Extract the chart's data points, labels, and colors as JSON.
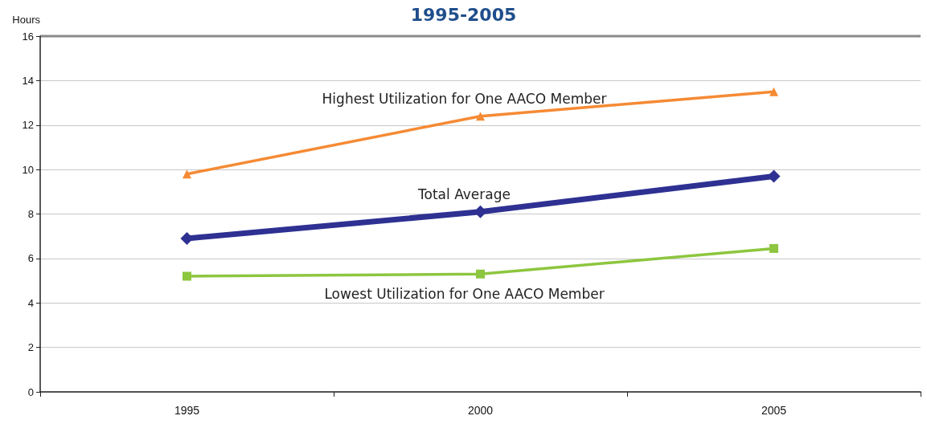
{
  "chart_data": {
    "type": "line",
    "title": "1995-2005",
    "ylabel": "Hours",
    "categories": [
      "1995",
      "2000",
      "2005"
    ],
    "series": [
      {
        "name": "Highest Utilization for One AACO Member",
        "color": "#f58a34",
        "values": [
          9.8,
          12.4,
          13.5
        ],
        "marker": "triangle"
      },
      {
        "name": "Total Average",
        "color": "#2e3192",
        "values": [
          6.9,
          8.1,
          9.7
        ],
        "marker": "diamond"
      },
      {
        "name": "Lowest Utilization for One AACO Member",
        "color": "#8dc63f",
        "values": [
          5.2,
          5.3,
          6.45
        ],
        "marker": "square"
      }
    ],
    "ylim": [
      0,
      16
    ],
    "yticks": [
      0,
      2,
      4,
      6,
      8,
      10,
      12,
      14,
      16
    ],
    "grid": "y",
    "legend": false,
    "line_style": "solid"
  }
}
